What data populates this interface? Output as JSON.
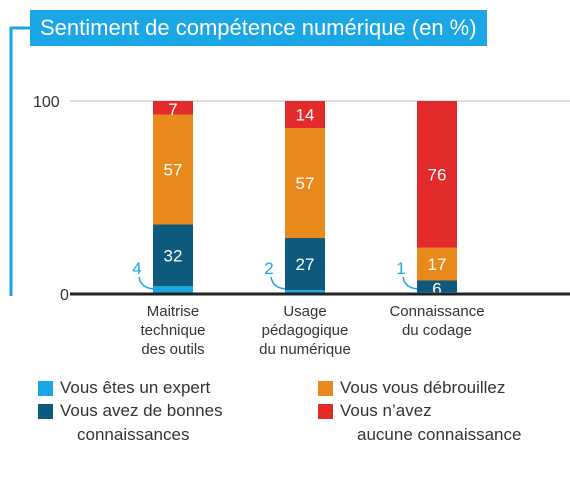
{
  "chart_data": {
    "type": "bar",
    "stacked": true,
    "title": "Sentiment de compétence numérique (en %)",
    "categories": [
      [
        "Maitrise",
        "technique",
        "des outils"
      ],
      [
        "Usage",
        "pédagogique",
        "du numérique"
      ],
      [
        "Connaissance",
        "du codage"
      ]
    ],
    "series": [
      {
        "name": "Vous êtes un expert",
        "color": "#1ba6e6",
        "values": [
          4,
          2,
          1
        ],
        "label_outside": true
      },
      {
        "name": "Vous avez de bonnes connaissances",
        "color": "#0d5a7c",
        "values": [
          32,
          27,
          6
        ]
      },
      {
        "name": "Vous vous débrouillez",
        "color": "#ea8a1c",
        "values": [
          57,
          57,
          17
        ]
      },
      {
        "name": "Vous n’avez aucune connaissance",
        "color": "#e32b2b",
        "values": [
          7,
          14,
          76
        ]
      }
    ],
    "yticks": [
      0,
      100
    ],
    "ylim": [
      0,
      100
    ],
    "grid": true
  },
  "legend": {
    "items": [
      {
        "lines": [
          "Vous êtes un expert"
        ],
        "color": "#1ba6e6"
      },
      {
        "lines": [
          "Vous vous débrouillez"
        ],
        "color": "#ea8a1c"
      },
      {
        "lines": [
          "Vous avez de bonnes",
          "connaissances"
        ],
        "color": "#0d5a7c"
      },
      {
        "lines": [
          "Vous n’avez",
          "aucune connaissance"
        ],
        "color": "#e32b2b"
      }
    ]
  },
  "colors": {
    "accent": "#1ba6e6",
    "axis": "#222222",
    "grid": "#bdbdbd"
  }
}
